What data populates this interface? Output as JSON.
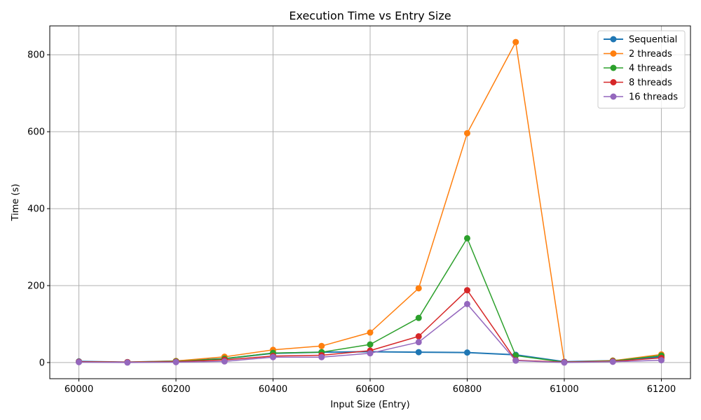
{
  "chart_data": {
    "type": "line",
    "title": "Execution Time vs Entry Size",
    "xlabel": "Input Size (Entry)",
    "ylabel": "Time (s)",
    "x": [
      60000,
      60100,
      60200,
      60300,
      60400,
      60500,
      60600,
      60700,
      60800,
      60900,
      61000,
      61100,
      61200
    ],
    "xticks": [
      60000,
      60200,
      60400,
      60600,
      60800,
      61000,
      61200
    ],
    "yticks": [
      0,
      200,
      400,
      600,
      800
    ],
    "xlim": [
      59940,
      61260
    ],
    "ylim": [
      -42,
      875
    ],
    "grid": true,
    "legend": "top-right",
    "series": [
      {
        "name": "Sequential",
        "color": "#1f77b4",
        "values": [
          3,
          1,
          4,
          10,
          24,
          27,
          28,
          27,
          26,
          20,
          2,
          5,
          15
        ]
      },
      {
        "name": "2 threads",
        "color": "#ff7f0e",
        "values": [
          2,
          1,
          4,
          15,
          33,
          43,
          78,
          193,
          596,
          833,
          1,
          5,
          21
        ]
      },
      {
        "name": "4 threads",
        "color": "#2ca02c",
        "values": [
          2,
          1,
          3,
          10,
          25,
          27,
          47,
          116,
          323,
          18,
          1,
          4,
          18
        ]
      },
      {
        "name": "8 threads",
        "color": "#d62728",
        "values": [
          2,
          1,
          2,
          7,
          17,
          19,
          31,
          68,
          188,
          6,
          1,
          3,
          12
        ]
      },
      {
        "name": "16 threads",
        "color": "#9467bd",
        "values": [
          1,
          0,
          1,
          3,
          14,
          14,
          24,
          53,
          152,
          5,
          0,
          2,
          6
        ]
      }
    ]
  }
}
